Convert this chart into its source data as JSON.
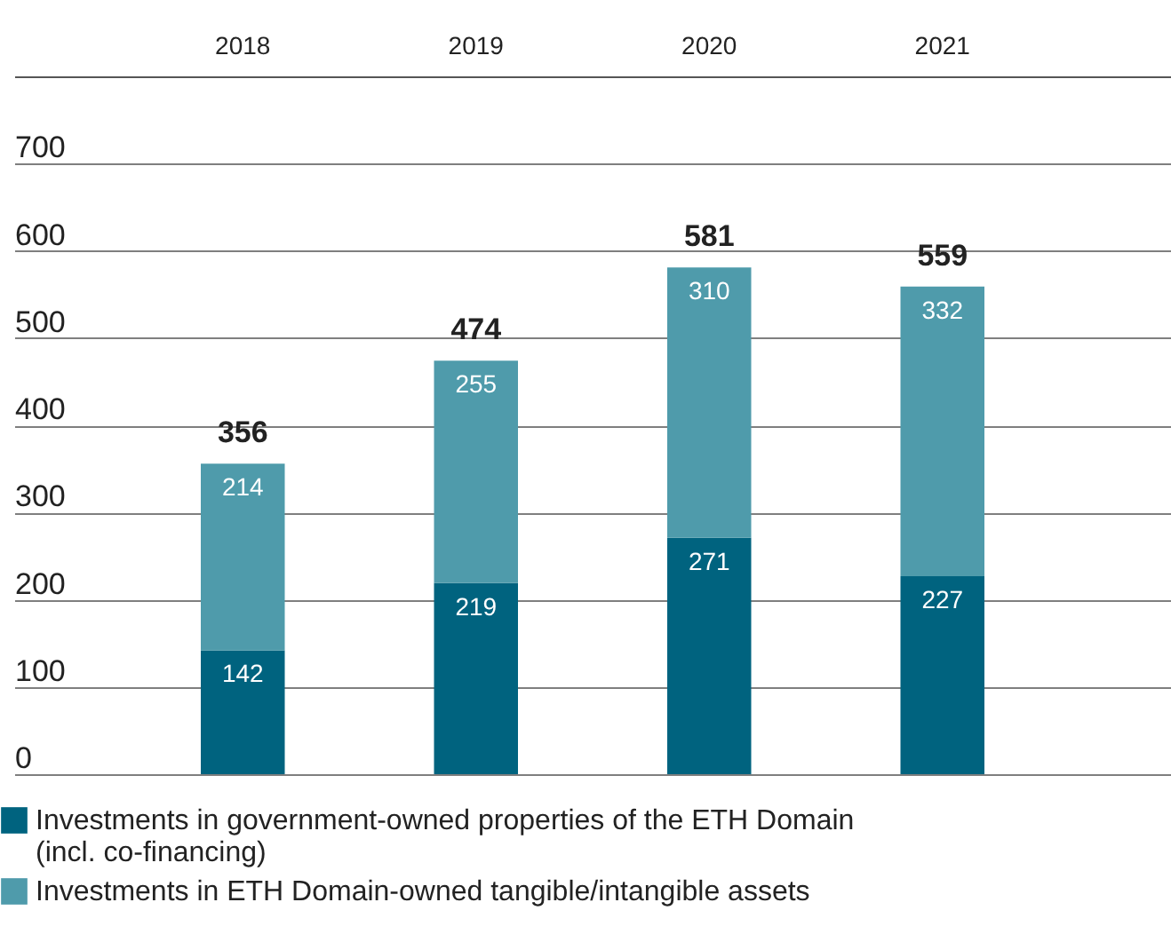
{
  "chart_data": {
    "type": "bar",
    "stacked": true,
    "categories": [
      "2018",
      "2019",
      "2020",
      "2021"
    ],
    "series": [
      {
        "name": "Investments in government-owned properties of the ETH Domain (incl. co-financing)",
        "color": "#00637f",
        "values": [
          142,
          219,
          271,
          227
        ]
      },
      {
        "name": "Investments in ETH Domain-owned tangible/intangible assets",
        "color": "#4f9bab",
        "values": [
          214,
          255,
          310,
          332
        ]
      }
    ],
    "totals": [
      "356",
      "474",
      "581",
      "559"
    ],
    "data_labels": true,
    "ylim": [
      0,
      800
    ],
    "yticks": [
      0,
      100,
      200,
      300,
      400,
      500,
      600,
      700
    ],
    "grid": "y",
    "legend": "bottom left"
  }
}
